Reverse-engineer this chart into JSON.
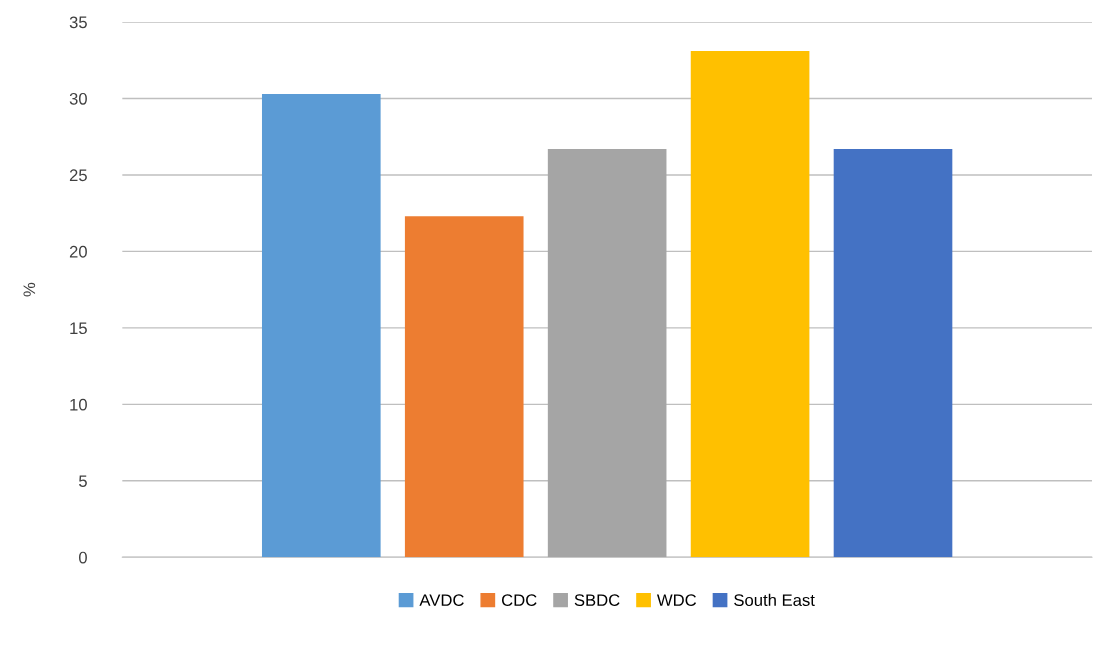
{
  "chart_data": {
    "type": "bar",
    "ylabel": "%",
    "categories": [
      null
    ],
    "series": [
      {
        "name": "AVDC",
        "color": "#5b9bd5",
        "values": [
          30.3
        ]
      },
      {
        "name": "CDC",
        "color": "#ed7d31",
        "values": [
          22.3
        ]
      },
      {
        "name": "SBDC",
        "color": "#a5a5a5",
        "values": [
          26.7
        ]
      },
      {
        "name": "WDC",
        "color": "#ffc000",
        "values": [
          33.1
        ]
      },
      {
        "name": "South East",
        "color": "#4472c4",
        "values": [
          26.7
        ]
      }
    ],
    "ylim": [
      0,
      35
    ],
    "yticks": [
      0,
      5,
      10,
      15,
      20,
      25,
      30,
      35
    ],
    "grid": "y",
    "legend": "bottom"
  }
}
